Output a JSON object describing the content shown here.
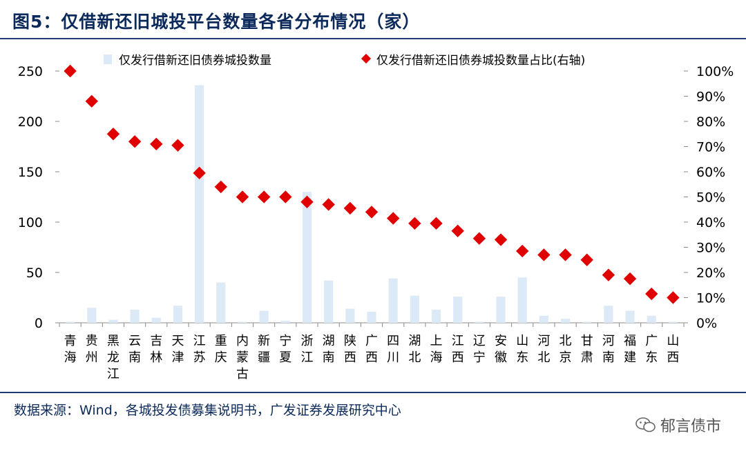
{
  "page": {
    "title": "图5：仅借新还旧城投平台数量各省分布情况（家）",
    "source": "数据来源：Wind，各城投发债募集说明书，广发证券发展研究中心",
    "watermark": "郁言债市"
  },
  "colors": {
    "bar": "#dce9f6",
    "marker": "#e00000",
    "title": "#0b2a5b"
  },
  "chart_data": {
    "type": "bar",
    "categories": [
      "青海",
      "贵州",
      "黑龙江",
      "云南",
      "吉林",
      "天津",
      "江苏",
      "重庆",
      "内蒙古",
      "新疆",
      "宁夏",
      "浙江",
      "湖南",
      "陕西",
      "广西",
      "四川",
      "湖北",
      "上海",
      "江西",
      "辽宁",
      "安徽",
      "山东",
      "河北",
      "北京",
      "甘肃",
      "河南",
      "福建",
      "广东",
      "山西"
    ],
    "series": [
      {
        "name": "仅发行借新还旧债券城投数量",
        "type": "bar",
        "axis": "left",
        "values": [
          1,
          15,
          3,
          13,
          5,
          17,
          236,
          40,
          1,
          12,
          2,
          130,
          42,
          14,
          11,
          44,
          27,
          13,
          26,
          1,
          26,
          45,
          7,
          4,
          1,
          17,
          12,
          7,
          1
        ]
      },
      {
        "name": "仅发行借新还旧债券城投数量占比(右轴)",
        "type": "scatter",
        "axis": "right",
        "values": [
          100,
          88,
          75,
          72,
          71,
          70.5,
          59.5,
          54,
          50,
          50,
          50,
          48,
          47,
          45.5,
          44,
          41.5,
          39.5,
          39.5,
          36.5,
          33.5,
          33,
          28.5,
          27,
          27,
          25,
          19,
          17.5,
          11.5,
          10
        ]
      }
    ],
    "ylim_left": [
      0,
      250
    ],
    "yticks_left": [
      "0",
      "50",
      "100",
      "150",
      "200",
      "250"
    ],
    "ylim_right": [
      0,
      100
    ],
    "yticks_right": [
      "0%",
      "10%",
      "20%",
      "30%",
      "40%",
      "50%",
      "60%",
      "70%",
      "80%",
      "90%",
      "100%"
    ],
    "legend_position": "top"
  }
}
